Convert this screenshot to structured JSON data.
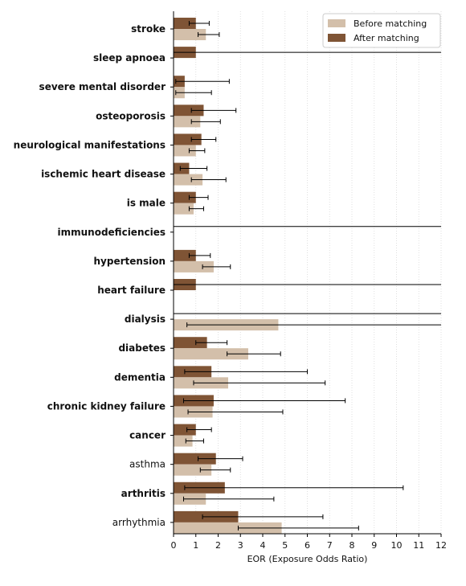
{
  "chart_data": {
    "type": "bar",
    "orientation": "horizontal",
    "xlabel": "EOR (Exposure Odds Ratio)",
    "xlim": [
      0,
      12
    ],
    "xticks": [
      0,
      1,
      2,
      3,
      4,
      5,
      6,
      7,
      8,
      9,
      10,
      11,
      12
    ],
    "grid": "vertical dotted",
    "legend": {
      "position": "top-right",
      "entries": [
        "Before matching",
        "After matching"
      ]
    },
    "colors": {
      "before": "#d3bfaa",
      "after": "#7f5435"
    },
    "categories": [
      {
        "label": "stroke",
        "bold": true
      },
      {
        "label": "sleep apnoea",
        "bold": true
      },
      {
        "label": "severe mental disorder",
        "bold": true
      },
      {
        "label": "osteoporosis",
        "bold": true
      },
      {
        "label": "neurological manifestations",
        "bold": true
      },
      {
        "label": "ischemic heart disease",
        "bold": true
      },
      {
        "label": "is male",
        "bold": true
      },
      {
        "label": "immunodeficiencies",
        "bold": true
      },
      {
        "label": "hypertension",
        "bold": true
      },
      {
        "label": "heart failure",
        "bold": true
      },
      {
        "label": "dialysis",
        "bold": true
      },
      {
        "label": "diabetes",
        "bold": true
      },
      {
        "label": "dementia",
        "bold": true
      },
      {
        "label": "chronic kidney failure",
        "bold": true
      },
      {
        "label": "cancer",
        "bold": true
      },
      {
        "label": "asthma",
        "bold": false
      },
      {
        "label": "arthritis",
        "bold": true
      },
      {
        "label": "arrhythmia",
        "bold": false
      }
    ],
    "series": [
      {
        "name": "After matching",
        "values": [
          1.0,
          1.0,
          0.5,
          1.35,
          1.25,
          0.7,
          1.0,
          0.0,
          1.0,
          1.0,
          0.0,
          1.5,
          1.7,
          1.8,
          1.0,
          1.9,
          2.3,
          2.9
        ],
        "ci_low": [
          0.7,
          0.0,
          0.1,
          0.8,
          0.8,
          0.3,
          0.7,
          0.0,
          0.7,
          0.0,
          0.0,
          1.0,
          0.5,
          0.45,
          0.6,
          1.1,
          0.5,
          1.3
        ],
        "ci_high": [
          1.6,
          12,
          2.5,
          2.8,
          1.9,
          1.5,
          1.55,
          12,
          1.65,
          12,
          12,
          2.4,
          6.0,
          7.7,
          1.7,
          3.1,
          10.3,
          6.7
        ]
      },
      {
        "name": "Before matching",
        "values": [
          1.45,
          0.0,
          0.5,
          1.2,
          1.0,
          1.3,
          0.9,
          0.0,
          1.8,
          0.0,
          4.7,
          3.35,
          2.45,
          1.75,
          0.85,
          1.7,
          1.45,
          4.85
        ],
        "ci_low": [
          1.1,
          0.0,
          0.1,
          0.8,
          0.7,
          0.8,
          0.7,
          0.0,
          1.3,
          0.0,
          0.6,
          2.4,
          0.9,
          0.65,
          0.55,
          1.2,
          0.45,
          2.9
        ],
        "ci_high": [
          2.05,
          0.0,
          1.7,
          2.1,
          1.4,
          2.35,
          1.35,
          0.0,
          2.55,
          0.0,
          12,
          4.8,
          6.8,
          4.9,
          1.35,
          2.55,
          4.5,
          8.3
        ]
      }
    ]
  }
}
